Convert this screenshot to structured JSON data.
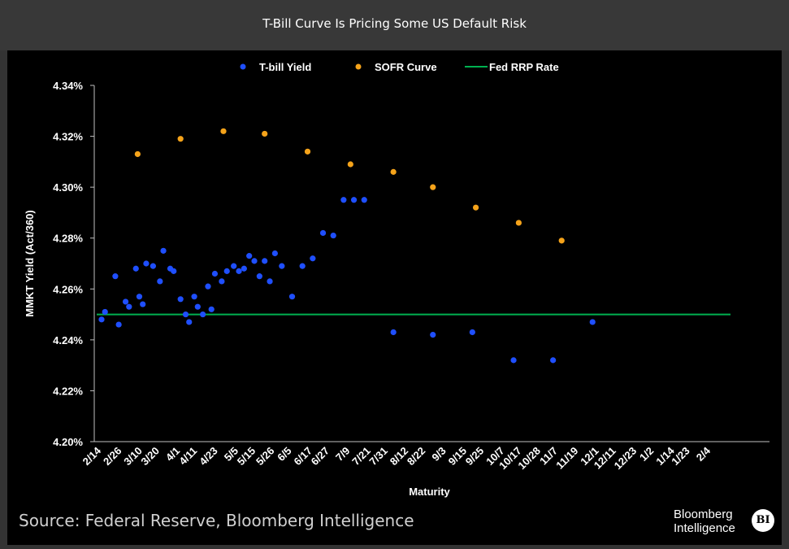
{
  "header": {
    "title": "T-Bill Curve Is Pricing Some US Default Risk"
  },
  "footer": {
    "source": "Source: Federal Reserve, Bloomberg Intelligence",
    "brand_line1": "Bloomberg",
    "brand_line2": "Intelligence",
    "brand_badge": "BI"
  },
  "chart_data": {
    "type": "scatter",
    "xlabel": "Maturity",
    "ylabel": "MMKT Yield (Act/360)",
    "ylim": [
      4.2,
      4.34
    ],
    "ytick_step": 0.02,
    "grid": false,
    "legend_position": "top",
    "xticks": [
      "2/14",
      "2/26",
      "3/10",
      "3/20",
      "4/1",
      "4/11",
      "4/23",
      "5/5",
      "5/15",
      "5/26",
      "6/5",
      "6/17",
      "6/27",
      "7/9",
      "7/21",
      "7/31",
      "8/12",
      "8/22",
      "9/3",
      "9/15",
      "9/25",
      "10/7",
      "10/17",
      "10/28",
      "11/7",
      "11/19",
      "12/1",
      "12/11",
      "12/23",
      "1/2",
      "1/14",
      "1/23",
      "2/4"
    ],
    "series": [
      {
        "name": "T-bill Yield",
        "kind": "scatter",
        "color": "#1f4fff",
        "points": [
          [
            "2/14",
            4.248
          ],
          [
            "2/16",
            4.251
          ],
          [
            "2/22",
            4.265
          ],
          [
            "2/24",
            4.246
          ],
          [
            "2/28",
            4.255
          ],
          [
            "3/2",
            4.253
          ],
          [
            "3/6",
            4.268
          ],
          [
            "3/8",
            4.257
          ],
          [
            "3/10",
            4.254
          ],
          [
            "3/12",
            4.27
          ],
          [
            "3/16",
            4.269
          ],
          [
            "3/20",
            4.263
          ],
          [
            "3/22",
            4.275
          ],
          [
            "3/26",
            4.268
          ],
          [
            "3/28",
            4.267
          ],
          [
            "4/1",
            4.256
          ],
          [
            "4/4",
            4.25
          ],
          [
            "4/6",
            4.247
          ],
          [
            "4/9",
            4.257
          ],
          [
            "4/11",
            4.253
          ],
          [
            "4/14",
            4.25
          ],
          [
            "4/17",
            4.261
          ],
          [
            "4/19",
            4.252
          ],
          [
            "4/21",
            4.266
          ],
          [
            "4/25",
            4.263
          ],
          [
            "4/28",
            4.267
          ],
          [
            "5/2",
            4.269
          ],
          [
            "5/5",
            4.267
          ],
          [
            "5/8",
            4.268
          ],
          [
            "5/11",
            4.273
          ],
          [
            "5/14",
            4.271
          ],
          [
            "5/17",
            4.265
          ],
          [
            "5/20",
            4.271
          ],
          [
            "5/23",
            4.263
          ],
          [
            "5/26",
            4.274
          ],
          [
            "5/30",
            4.269
          ],
          [
            "6/5",
            4.257
          ],
          [
            "6/11",
            4.269
          ],
          [
            "6/17",
            4.272
          ],
          [
            "6/23",
            4.282
          ],
          [
            "6/29",
            4.281
          ],
          [
            "7/5",
            4.295
          ],
          [
            "7/11",
            4.295
          ],
          [
            "7/17",
            4.295
          ],
          [
            "8/3",
            4.243
          ],
          [
            "8/26",
            4.242
          ],
          [
            "9/18",
            4.243
          ],
          [
            "10/12",
            4.232
          ],
          [
            "11/4",
            4.232
          ],
          [
            "11/27",
            4.247
          ]
        ]
      },
      {
        "name": "SOFR Curve",
        "kind": "scatter",
        "color": "#f5a31a",
        "points": [
          [
            "3/7",
            4.313
          ],
          [
            "4/1",
            4.319
          ],
          [
            "4/26",
            4.322
          ],
          [
            "5/20",
            4.321
          ],
          [
            "6/14",
            4.314
          ],
          [
            "7/9",
            4.309
          ],
          [
            "8/3",
            4.306
          ],
          [
            "8/26",
            4.3
          ],
          [
            "9/20",
            4.292
          ],
          [
            "10/15",
            4.286
          ],
          [
            "11/9",
            4.279
          ]
        ]
      },
      {
        "name": "Fed RRP Rate",
        "kind": "line",
        "color": "#00b050",
        "value": 4.25
      }
    ]
  }
}
